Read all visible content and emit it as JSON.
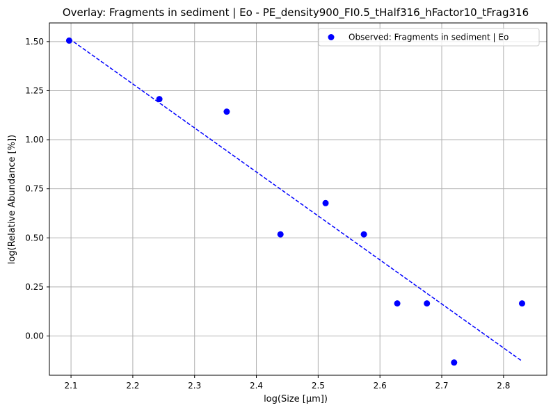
{
  "chart_data": {
    "type": "scatter",
    "title": "Overlay: Fragments in sediment | Eo - PE_density900_FI0.5_tHalf316_hFactor10_tFrag316",
    "xlabel": "log(Size [μm])",
    "ylabel": "log(Relative Abundance [%])",
    "xlim": [
      2.065,
      2.87
    ],
    "ylim": [
      -0.2,
      1.595
    ],
    "xticks": [
      2.1,
      2.2,
      2.3,
      2.4,
      2.5,
      2.6,
      2.7,
      2.8
    ],
    "xtick_labels": [
      "2.1",
      "2.2",
      "2.3",
      "2.4",
      "2.5",
      "2.6",
      "2.7",
      "2.8"
    ],
    "yticks": [
      0.0,
      0.25,
      0.5,
      0.75,
      1.0,
      1.25,
      1.5
    ],
    "ytick_labels": [
      "0.00",
      "0.25",
      "0.50",
      "0.75",
      "1.00",
      "1.25",
      "1.50"
    ],
    "grid": true,
    "legend_position": "top-right",
    "series": [
      {
        "name": "Observed: Fragments in sediment | Eo",
        "kind": "scatter",
        "color": "#0000ff",
        "x": [
          2.097,
          2.243,
          2.352,
          2.439,
          2.512,
          2.574,
          2.628,
          2.676,
          2.72,
          2.83
        ],
        "y": [
          1.505,
          1.207,
          1.143,
          0.518,
          0.677,
          0.518,
          0.166,
          0.166,
          -0.135,
          0.166
        ]
      },
      {
        "kind": "line",
        "style": "dashed",
        "color": "#0000ff",
        "x": [
          2.097,
          2.83
        ],
        "y": [
          1.515,
          -0.128
        ]
      }
    ]
  }
}
